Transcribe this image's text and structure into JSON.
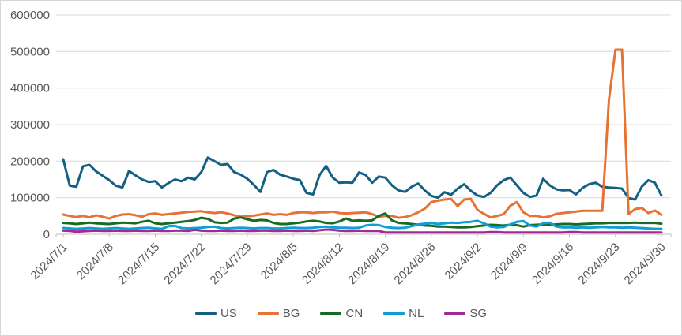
{
  "chart": {
    "background": "#ffffff",
    "border_color": "#d7d7d7",
    "grid_color": "#d9d9d9",
    "axis_line_color": "#bfbfbf",
    "tick_label_color": "#595959"
  },
  "legend": {
    "position": "bottom-center",
    "entries": [
      "US",
      "BG",
      "CN",
      "NL",
      "SG"
    ]
  },
  "chart_data": {
    "type": "line",
    "title": "",
    "xlabel": "",
    "ylabel": "",
    "grid": true,
    "ylim": [
      0,
      600000
    ],
    "yticks": [
      0,
      100000,
      200000,
      300000,
      400000,
      500000,
      600000
    ],
    "x_tick_labels": [
      "2024/7/1",
      "2024/7/8",
      "2024/7/15",
      "2024/7/22",
      "2024/7/29",
      "2024/8/5",
      "2024/8/12",
      "2024/8/19",
      "2024/8/26",
      "2024/9/2",
      "2024/9/9",
      "2024/9/16",
      "2024/9/23",
      "2024/9/30"
    ],
    "x_tick_interval_days": 7,
    "x": [
      "2024/7/1",
      "2024/7/2",
      "2024/7/3",
      "2024/7/4",
      "2024/7/5",
      "2024/7/6",
      "2024/7/7",
      "2024/7/8",
      "2024/7/9",
      "2024/7/10",
      "2024/7/11",
      "2024/7/12",
      "2024/7/13",
      "2024/7/14",
      "2024/7/15",
      "2024/7/16",
      "2024/7/17",
      "2024/7/18",
      "2024/7/19",
      "2024/7/20",
      "2024/7/21",
      "2024/7/22",
      "2024/7/23",
      "2024/7/24",
      "2024/7/25",
      "2024/7/26",
      "2024/7/27",
      "2024/7/28",
      "2024/7/29",
      "2024/7/30",
      "2024/7/31",
      "2024/8/1",
      "2024/8/2",
      "2024/8/3",
      "2024/8/4",
      "2024/8/5",
      "2024/8/6",
      "2024/8/7",
      "2024/8/8",
      "2024/8/9",
      "2024/8/10",
      "2024/8/11",
      "2024/8/12",
      "2024/8/13",
      "2024/8/14",
      "2024/8/15",
      "2024/8/16",
      "2024/8/17",
      "2024/8/18",
      "2024/8/19",
      "2024/8/20",
      "2024/8/21",
      "2024/8/22",
      "2024/8/23",
      "2024/8/24",
      "2024/8/25",
      "2024/8/26",
      "2024/8/27",
      "2024/8/28",
      "2024/8/29",
      "2024/8/30",
      "2024/8/31",
      "2024/9/1",
      "2024/9/2",
      "2024/9/3",
      "2024/9/4",
      "2024/9/5",
      "2024/9/6",
      "2024/9/7",
      "2024/9/8",
      "2024/9/9",
      "2024/9/10",
      "2024/9/11",
      "2024/9/12",
      "2024/9/13",
      "2024/9/14",
      "2024/9/15",
      "2024/9/16",
      "2024/9/17",
      "2024/9/18",
      "2024/9/19",
      "2024/9/20",
      "2024/9/21",
      "2024/9/22",
      "2024/9/23",
      "2024/9/24",
      "2024/9/25",
      "2024/9/26",
      "2024/9/27",
      "2024/9/28",
      "2024/9/29",
      "2024/9/30"
    ],
    "series": [
      {
        "name": "US",
        "color": "#156082",
        "values": [
          205000,
          133000,
          130000,
          186000,
          190000,
          172000,
          160000,
          148000,
          133000,
          128000,
          173000,
          161000,
          150000,
          143000,
          145000,
          128000,
          140000,
          150000,
          145000,
          155000,
          150000,
          170000,
          210000,
          200000,
          190000,
          192000,
          170000,
          163000,
          152000,
          135000,
          116000,
          170000,
          176000,
          163000,
          158000,
          152000,
          148000,
          113000,
          109000,
          162000,
          187000,
          155000,
          141000,
          142000,
          141000,
          169000,
          162000,
          141000,
          158000,
          155000,
          134000,
          120000,
          116000,
          130000,
          139000,
          120000,
          105000,
          100000,
          115000,
          108000,
          125000,
          137000,
          119000,
          106000,
          102000,
          113000,
          134000,
          148000,
          155000,
          134000,
          113000,
          102000,
          106000,
          152000,
          134000,
          123000,
          120000,
          121000,
          109000,
          127000,
          137000,
          141000,
          130000,
          128000,
          127000,
          125000,
          99000,
          95000,
          130000,
          148000,
          141000,
          106000
        ]
      },
      {
        "name": "BG",
        "color": "#E97132",
        "values": [
          54000,
          50000,
          47000,
          50000,
          46000,
          52000,
          48000,
          43000,
          50000,
          54000,
          55000,
          52000,
          48000,
          55000,
          57000,
          53000,
          55000,
          57000,
          59000,
          61000,
          62000,
          63000,
          60000,
          58000,
          60000,
          57000,
          52000,
          48000,
          49000,
          51000,
          54000,
          57000,
          53000,
          55000,
          53000,
          58000,
          60000,
          60000,
          58000,
          60000,
          60000,
          62000,
          58000,
          57000,
          58000,
          59000,
          60000,
          55000,
          48000,
          50000,
          50000,
          45000,
          47000,
          52000,
          60000,
          70000,
          88000,
          92000,
          95000,
          97000,
          77000,
          95000,
          97000,
          67000,
          56000,
          46000,
          50000,
          55000,
          78000,
          88000,
          60000,
          50000,
          50000,
          46000,
          49000,
          56000,
          58000,
          60000,
          62000,
          64000,
          64000,
          64000,
          64000,
          367000,
          505000,
          505000,
          55000,
          69000,
          72000,
          58000,
          65000,
          53000
        ]
      },
      {
        "name": "CN",
        "color": "#196B24",
        "values": [
          31000,
          30000,
          28000,
          30000,
          32000,
          30000,
          29000,
          28000,
          30000,
          32000,
          31000,
          30000,
          34000,
          37000,
          30000,
          28000,
          30000,
          32000,
          34000,
          36000,
          39000,
          45000,
          42000,
          33000,
          31000,
          32000,
          43000,
          46000,
          41000,
          37000,
          39000,
          38000,
          31000,
          28000,
          28000,
          30000,
          32000,
          35000,
          37000,
          35000,
          31000,
          30000,
          35000,
          43000,
          37000,
          38000,
          37000,
          38000,
          50000,
          57000,
          38000,
          31000,
          30000,
          28000,
          26000,
          24000,
          23000,
          21000,
          21000,
          20000,
          19000,
          19000,
          20000,
          22000,
          24000,
          26000,
          25000,
          24000,
          26000,
          25000,
          21000,
          25000,
          26000,
          27000,
          26000,
          27000,
          28000,
          28000,
          27000,
          28000,
          29000,
          30000,
          30000,
          31000,
          31000,
          31000,
          31000,
          32000,
          31000,
          31000,
          31000,
          29000
        ]
      },
      {
        "name": "NL",
        "color": "#0F9ED5",
        "values": [
          17000,
          16000,
          15000,
          16000,
          17000,
          16000,
          15000,
          16000,
          17000,
          16000,
          15000,
          16000,
          17000,
          18000,
          16000,
          15000,
          22000,
          23000,
          17000,
          16000,
          17000,
          18000,
          20000,
          21000,
          17000,
          16000,
          17000,
          18000,
          17000,
          16000,
          17000,
          17000,
          16000,
          16000,
          17000,
          18000,
          17000,
          17000,
          18000,
          20000,
          21000,
          19000,
          18000,
          18000,
          17000,
          18000,
          24000,
          26000,
          25000,
          20000,
          18000,
          17000,
          18000,
          22000,
          27000,
          29000,
          31000,
          28000,
          30000,
          32000,
          31000,
          33000,
          34000,
          37000,
          30000,
          21000,
          19000,
          20000,
          27000,
          34000,
          36000,
          24000,
          21000,
          30000,
          32000,
          21000,
          19000,
          19000,
          18000,
          19000,
          18000,
          19000,
          20000,
          19000,
          19000,
          18000,
          19000,
          18000,
          17000,
          16000,
          15000,
          15000
        ]
      },
      {
        "name": "SG",
        "color": "#A02B93",
        "values": [
          10000,
          9000,
          7000,
          8000,
          9000,
          10000,
          9000,
          9000,
          10000,
          9000,
          9000,
          10000,
          9000,
          9000,
          10000,
          9000,
          9000,
          10000,
          10000,
          9000,
          12000,
          10000,
          9000,
          9000,
          10000,
          9000,
          9000,
          10000,
          9000,
          9000,
          10000,
          10000,
          9000,
          9000,
          10000,
          9000,
          9000,
          10000,
          9000,
          11000,
          13000,
          12000,
          10000,
          9000,
          9000,
          10000,
          9000,
          9000,
          9000,
          5000,
          5000,
          5000,
          5000,
          5000,
          5000,
          5000,
          5000,
          5000,
          5000,
          5000,
          5000,
          5000,
          5000,
          5000,
          5000,
          6000,
          6000,
          5000,
          5000,
          5000,
          5000,
          5000,
          5000,
          5000,
          5000,
          5000,
          5000,
          6000,
          6000,
          5000,
          5000,
          5000,
          5000,
          5000,
          5000,
          5000,
          5000,
          5000,
          5000,
          5000,
          5000,
          5000
        ]
      }
    ]
  }
}
